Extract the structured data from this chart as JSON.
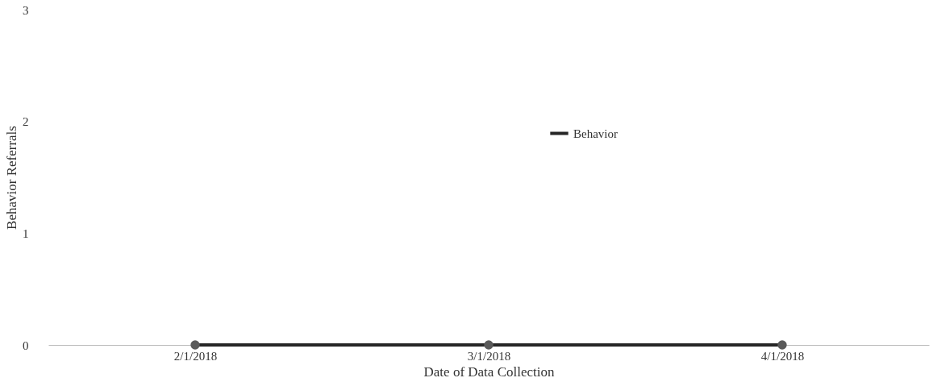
{
  "chart_data": {
    "type": "line",
    "xlabel": "Date of Data Collection",
    "ylabel": "Behavior Referrals",
    "categories": [
      "2/1/2018",
      "3/1/2018",
      "4/1/2018"
    ],
    "series": [
      {
        "name": "Behavior",
        "color": "#262626",
        "values": [
          0,
          0,
          0
        ]
      }
    ],
    "ylim": [
      0,
      3
    ],
    "yticks": [
      0,
      1,
      2,
      3
    ],
    "grid": false,
    "legend": "top right",
    "marker": "circle",
    "line_style": "solid"
  }
}
